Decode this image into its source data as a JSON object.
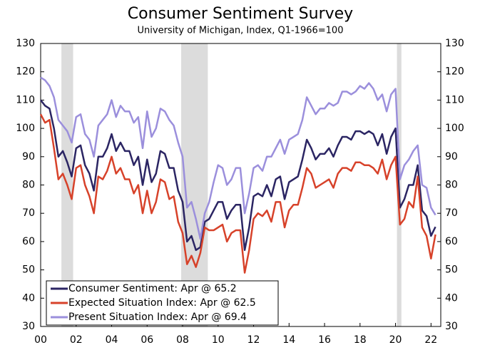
{
  "chart_data": {
    "type": "line",
    "title": "Consumer Sentiment Survey",
    "subtitle": "University of Michigan, Index, Q1-1966=100",
    "x": [
      2000,
      2000.25,
      2000.5,
      2000.75,
      2001,
      2001.25,
      2001.5,
      2001.75,
      2002,
      2002.25,
      2002.5,
      2002.75,
      2003,
      2003.25,
      2003.5,
      2003.75,
      2004,
      2004.25,
      2004.5,
      2004.75,
      2005,
      2005.25,
      2005.5,
      2005.75,
      2006,
      2006.25,
      2006.5,
      2006.75,
      2007,
      2007.25,
      2007.5,
      2007.75,
      2008,
      2008.25,
      2008.5,
      2008.75,
      2009,
      2009.25,
      2009.5,
      2009.75,
      2010,
      2010.25,
      2010.5,
      2010.75,
      2011,
      2011.25,
      2011.5,
      2011.75,
      2012,
      2012.25,
      2012.5,
      2012.75,
      2013,
      2013.25,
      2013.5,
      2013.75,
      2014,
      2014.25,
      2014.5,
      2014.75,
      2015,
      2015.25,
      2015.5,
      2015.75,
      2016,
      2016.25,
      2016.5,
      2016.75,
      2017,
      2017.25,
      2017.5,
      2017.75,
      2018,
      2018.25,
      2018.5,
      2018.75,
      2019,
      2019.25,
      2019.5,
      2019.75,
      2020,
      2020.25,
      2020.5,
      2020.75,
      2021,
      2021.25,
      2021.5,
      2021.75,
      2022,
      2022.25
    ],
    "series": [
      {
        "name": "Consumer Sentiment: Apr @ 65.2",
        "color": "#2b2563",
        "values": [
          110,
          108,
          107,
          100,
          90,
          92,
          88,
          83,
          93,
          94,
          87,
          84,
          78,
          90,
          90,
          93,
          98,
          92,
          95,
          92,
          92,
          87,
          90,
          80,
          89,
          81,
          84,
          92,
          91,
          86,
          86,
          78,
          74,
          60,
          62,
          57,
          58,
          67,
          68,
          71,
          74,
          74,
          68,
          71,
          73,
          73,
          57,
          65,
          76,
          77,
          76,
          80,
          76,
          82,
          83,
          75,
          81,
          82,
          83,
          89,
          96,
          93,
          89,
          91,
          91,
          93,
          90,
          94,
          97,
          97,
          96,
          99,
          99,
          98,
          99,
          98,
          94,
          98,
          91,
          97,
          100,
          72,
          75,
          80,
          80,
          87,
          71,
          69,
          62,
          65.2
        ]
      },
      {
        "name": "Expected Situation Index: Apr @ 62.5",
        "color": "#d7422a",
        "values": [
          105,
          102,
          103,
          93,
          82,
          84,
          80,
          75,
          86,
          87,
          80,
          76,
          70,
          83,
          82,
          85,
          90,
          84,
          86,
          82,
          82,
          77,
          80,
          70,
          78,
          70,
          74,
          82,
          81,
          75,
          76,
          67,
          63,
          52,
          55,
          51,
          56,
          65,
          64,
          64,
          65,
          66,
          60,
          63,
          64,
          64,
          49,
          57,
          68,
          70,
          69,
          71,
          67,
          74,
          74,
          65,
          71,
          73,
          73,
          79,
          86,
          84,
          79,
          80,
          81,
          82,
          79,
          84,
          86,
          86,
          85,
          88,
          88,
          87,
          87,
          86,
          84,
          89,
          82,
          87,
          90,
          66,
          68,
          74,
          72,
          83,
          65,
          62,
          54,
          62.5
        ]
      },
      {
        "name": "Present Situation Index: Apr @ 69.4",
        "color": "#9b8fdc",
        "values": [
          118,
          117,
          115,
          111,
          103,
          101,
          99,
          95,
          104,
          105,
          98,
          96,
          90,
          101,
          103,
          105,
          110,
          104,
          108,
          106,
          106,
          102,
          104,
          93,
          106,
          97,
          100,
          107,
          106,
          103,
          101,
          95,
          90,
          72,
          74,
          68,
          61,
          70,
          74,
          81,
          87,
          86,
          80,
          82,
          86,
          86,
          70,
          77,
          86,
          87,
          85,
          90,
          90,
          93,
          96,
          91,
          96,
          97,
          98,
          103,
          111,
          108,
          105,
          107,
          107,
          109,
          108,
          109,
          113,
          113,
          112,
          113,
          115,
          114,
          116,
          114,
          110,
          112,
          106,
          112,
          114,
          82,
          87,
          89,
          92,
          94,
          80,
          79,
          72,
          69.4
        ]
      }
    ],
    "recessions": [
      [
        2001.17,
        2001.83
      ],
      [
        2007.92,
        2009.42
      ],
      [
        2020.08,
        2020.33
      ]
    ],
    "recession_color": "#dcdcdc",
    "xlim": [
      2000,
      2022.55
    ],
    "xticks": [
      {
        "value": 2000,
        "label": "00"
      },
      {
        "value": 2002,
        "label": "02"
      },
      {
        "value": 2004,
        "label": "04"
      },
      {
        "value": 2006,
        "label": "06"
      },
      {
        "value": 2008,
        "label": "08"
      },
      {
        "value": 2010,
        "label": "10"
      },
      {
        "value": 2012,
        "label": "12"
      },
      {
        "value": 2014,
        "label": "14"
      },
      {
        "value": 2016,
        "label": "16"
      },
      {
        "value": 2018,
        "label": "18"
      },
      {
        "value": 2020,
        "label": "20"
      },
      {
        "value": 2022,
        "label": "22"
      }
    ],
    "ylim": [
      30,
      130
    ],
    "yticks": [
      30,
      40,
      50,
      60,
      70,
      80,
      90,
      100,
      110,
      120,
      130
    ],
    "legend": "lower-left"
  }
}
